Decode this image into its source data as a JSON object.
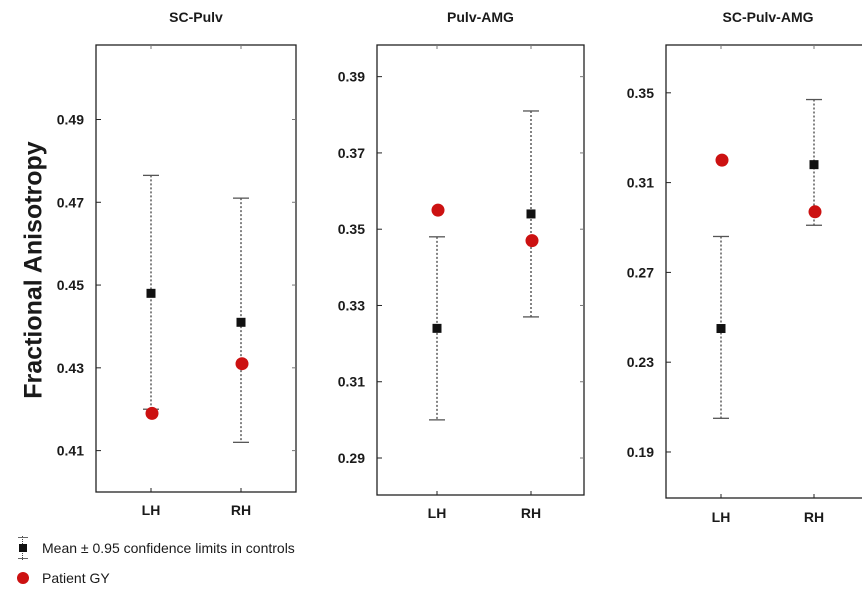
{
  "colors": {
    "patient": "#cc1111",
    "control": "#111111",
    "axis": "#222222"
  },
  "y_axis_label": "Fractional Anisotropy",
  "legend": {
    "controls_label": "Mean ± 0.95 confidence limits in controls",
    "patient_label": "Patient GY"
  },
  "chart_data": [
    {
      "type": "scatter",
      "title": "SC-Pulv",
      "categories": [
        "LH",
        "RH"
      ],
      "ylim": [
        0.4,
        0.508
      ],
      "yticks": [
        0.41,
        0.43,
        0.45,
        0.47,
        0.49
      ],
      "ytick_labels": [
        "0.41",
        "0.43",
        "0.45",
        "0.47",
        "0.49"
      ],
      "controls": {
        "mean": [
          0.448,
          0.441
        ],
        "lower": [
          0.42,
          0.412
        ],
        "upper": [
          0.4765,
          0.471
        ]
      },
      "patient": [
        0.419,
        0.431
      ]
    },
    {
      "type": "scatter",
      "title": "Pulv-AMG",
      "categories": [
        "LH",
        "RH"
      ],
      "ylim": [
        0.2803,
        0.3983
      ],
      "yticks": [
        0.29,
        0.31,
        0.33,
        0.35,
        0.37,
        0.39
      ],
      "ytick_labels": [
        "0.29",
        "0.31",
        "0.33",
        "0.35",
        "0.37",
        "0.39"
      ],
      "controls": {
        "mean": [
          0.324,
          0.354
        ],
        "lower": [
          0.3,
          0.327
        ],
        "upper": [
          0.348,
          0.381
        ]
      },
      "patient": [
        0.355,
        0.347
      ]
    },
    {
      "type": "scatter",
      "title": "SC-Pulv-AMG",
      "categories": [
        "LH",
        "RH"
      ],
      "ylim": [
        0.1695,
        0.3713
      ],
      "yticks": [
        0.19,
        0.23,
        0.27,
        0.31,
        0.35
      ],
      "ytick_labels": [
        "0.19",
        "0.23",
        "0.27",
        "0.31",
        "0.35"
      ],
      "controls": {
        "mean": [
          0.245,
          0.318
        ],
        "lower": [
          0.205,
          0.291
        ],
        "upper": [
          0.286,
          0.347
        ]
      },
      "patient": [
        0.32,
        0.297
      ]
    }
  ]
}
